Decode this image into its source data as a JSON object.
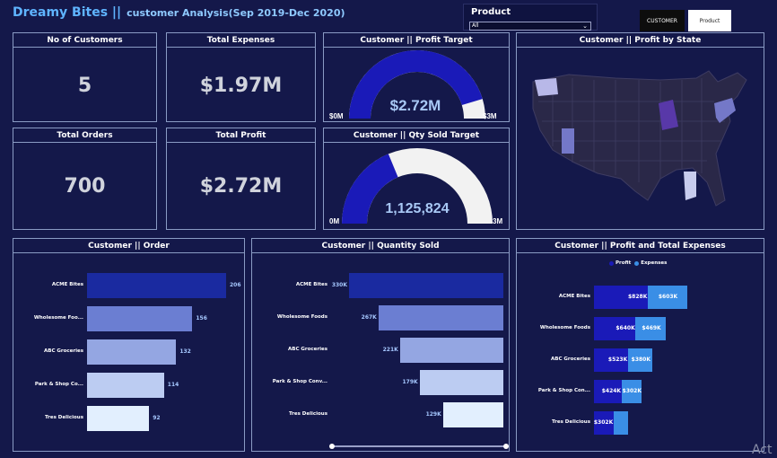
{
  "header": {
    "brand": "Dreamy Bites ||",
    "subtitle": "customer Analysis(Sep 2019-Dec 2020)"
  },
  "filter": {
    "label": "Product",
    "selected": "All"
  },
  "toggle": {
    "customer": "CUSTOMER",
    "product": "Product"
  },
  "kpis": {
    "customers": {
      "title": "No of Customers",
      "value": "5"
    },
    "expenses": {
      "title": "Total Expenses",
      "value": "$1.97M"
    },
    "orders": {
      "title": "Total Orders",
      "value": "700"
    },
    "profit": {
      "title": "Total Profit",
      "value": "$2.72M"
    }
  },
  "gauges": {
    "profit": {
      "title": "Customer || Profit Target",
      "value": "$2.72M",
      "min_label": "$0M",
      "max_label": "$3M",
      "fraction": 0.907
    },
    "qty": {
      "title": "Customer || Qty Sold Target",
      "value": "1,125,824",
      "min_label": "0M",
      "max_label": "3M",
      "fraction": 0.375
    }
  },
  "map": {
    "title": "Customer || Profit by State"
  },
  "orders_chart": {
    "title": "Customer || Order",
    "chart_data": {
      "type": "bar",
      "categories": [
        "ACME Bites",
        "Wholesome Foo...",
        "ABC Groceries",
        "Park & Shop Co...",
        "Tres Delicious"
      ],
      "values": [
        206,
        156,
        132,
        114,
        92
      ],
      "value_labels": [
        "206",
        "156",
        "132",
        "114",
        "92"
      ],
      "colors": [
        "#1a2aa0",
        "#6b7ed2",
        "#94a6e2",
        "#bcccf2",
        "#e2effe"
      ]
    }
  },
  "qty_chart": {
    "title": "Customer || Quantity Sold",
    "chart_data": {
      "type": "bar",
      "categories": [
        "ACME Bites",
        "Wholesome Foods",
        "ABC Groceries",
        "Park & Shop Conv...",
        "Tres Delicious"
      ],
      "values": [
        330,
        267,
        221,
        179,
        129
      ],
      "value_labels": [
        "330K",
        "267K",
        "221K",
        "179K",
        "129K"
      ],
      "colors": [
        "#1a2aa0",
        "#6b7ed2",
        "#94a6e2",
        "#bcccf2",
        "#e2effe"
      ]
    }
  },
  "profit_exp_chart": {
    "title": "Customer || Profit and Total Expenses",
    "legend": {
      "profit": "Profit",
      "expenses": "Expenses"
    },
    "colors": {
      "profit": "#1a1ab8",
      "expenses": "#3a8ee6"
    },
    "chart_data": {
      "type": "bar",
      "categories": [
        "ACME Bites",
        "Wholesome Foods",
        "ABC Groceries",
        "Park & Shop Con...",
        "Tres Delicious"
      ],
      "series": [
        {
          "name": "Profit",
          "values": [
            828,
            640,
            523,
            424,
            302
          ],
          "labels": [
            "$828K",
            "$640K",
            "$523K",
            "$424K",
            "$302K"
          ]
        },
        {
          "name": "Expenses",
          "values": [
            603,
            469,
            380,
            302,
            221
          ],
          "labels": [
            "$603K",
            "$469K",
            "$380K",
            "$302K",
            ""
          ]
        }
      ]
    }
  },
  "watermark": "Act"
}
